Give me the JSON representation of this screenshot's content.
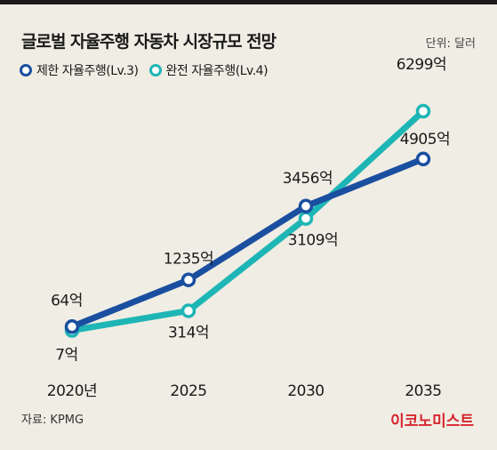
{
  "header": {
    "title": "글로벌 자율주행 자동차 시장규모 전망",
    "unit": "단위: 달러"
  },
  "footer": {
    "source": "자료: KPMG",
    "brand": "이코노미스트"
  },
  "colors": {
    "series_1": "#1a4fa0",
    "series_2": "#1eb5b5",
    "background": "#f0ede4",
    "brand": "#d6262e"
  },
  "chart_data": {
    "type": "line",
    "x": [
      "2020년",
      "2025",
      "2030",
      "2035"
    ],
    "series": [
      {
        "name": "제한 자율주행(Lv.3)",
        "values": [
          64,
          1235,
          3456,
          4905
        ],
        "labels": [
          "64억",
          "1235억",
          "3456억",
          "4905억"
        ]
      },
      {
        "name": "완전 자율주행(Lv.4)",
        "values": [
          7,
          314,
          3109,
          6299
        ],
        "labels": [
          "7억",
          "314억",
          "3109억",
          "6299억"
        ]
      }
    ],
    "grid": false
  }
}
